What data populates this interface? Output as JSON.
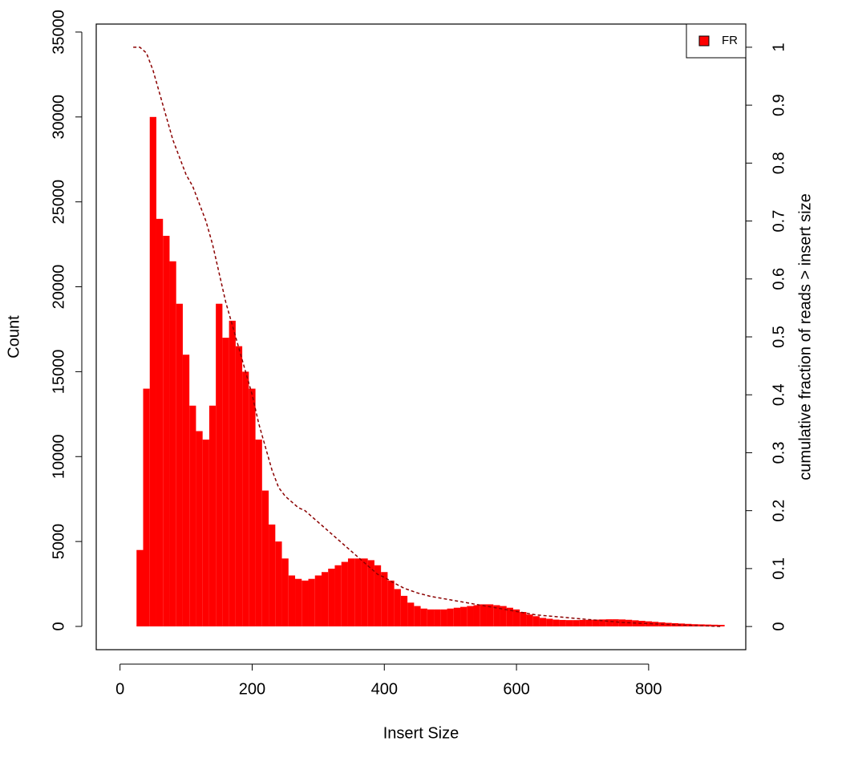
{
  "chart_data": {
    "type": "bar",
    "xlabel": "Insert Size",
    "ylabel": "Count",
    "y2label": "cumulative fraction of reads > insert size",
    "x": [
      20,
      30,
      40,
      50,
      60,
      70,
      80,
      90,
      100,
      110,
      120,
      130,
      140,
      150,
      160,
      170,
      180,
      190,
      200,
      210,
      220,
      230,
      240,
      250,
      260,
      270,
      280,
      290,
      300,
      310,
      320,
      330,
      340,
      350,
      360,
      370,
      380,
      390,
      400,
      410,
      420,
      430,
      440,
      450,
      460,
      470,
      480,
      490,
      500,
      510,
      520,
      530,
      540,
      550,
      560,
      570,
      580,
      590,
      600,
      610,
      620,
      630,
      640,
      650,
      660,
      670,
      680,
      690,
      700,
      710,
      720,
      730,
      740,
      750,
      760,
      770,
      780,
      790,
      800,
      810,
      820,
      830,
      840,
      850,
      860,
      870,
      880,
      890,
      900,
      910
    ],
    "series": [
      {
        "name": "FR",
        "color": "#ff0000",
        "values": [
          0,
          4500,
          14000,
          30000,
          24000,
          23000,
          21500,
          19000,
          16000,
          13000,
          11500,
          11000,
          13000,
          19000,
          17000,
          18000,
          16500,
          15000,
          14000,
          11000,
          8000,
          6000,
          5000,
          4000,
          3000,
          2800,
          2700,
          2800,
          3000,
          3200,
          3400,
          3600,
          3800,
          4000,
          4000,
          4000,
          3900,
          3600,
          3200,
          2700,
          2200,
          1800,
          1400,
          1200,
          1050,
          1000,
          1000,
          1000,
          1050,
          1100,
          1150,
          1200,
          1250,
          1300,
          1300,
          1250,
          1200,
          1100,
          1000,
          850,
          700,
          600,
          500,
          450,
          400,
          380,
          370,
          370,
          380,
          390,
          400,
          410,
          420,
          420,
          410,
          390,
          360,
          330,
          300,
          270,
          240,
          210,
          190,
          170,
          150,
          130,
          120,
          110,
          100,
          90
        ]
      },
      {
        "type": "line",
        "color": "#8b0000",
        "axis": "y2",
        "dashed": true,
        "values": [
          1,
          1,
          0.99,
          0.96,
          0.92,
          0.88,
          0.84,
          0.81,
          0.78,
          0.76,
          0.73,
          0.7,
          0.66,
          0.61,
          0.56,
          0.52,
          0.48,
          0.44,
          0.4,
          0.35,
          0.31,
          0.27,
          0.24,
          0.225,
          0.215,
          0.205,
          0.2,
          0.19,
          0.18,
          0.17,
          0.16,
          0.15,
          0.14,
          0.13,
          0.12,
          0.11,
          0.1,
          0.09,
          0.085,
          0.078,
          0.072,
          0.066,
          0.062,
          0.058,
          0.055,
          0.052,
          0.05,
          0.048,
          0.046,
          0.044,
          0.042,
          0.04,
          0.038,
          0.036,
          0.034,
          0.032,
          0.03,
          0.028,
          0.026,
          0.024,
          0.022,
          0.02,
          0.019,
          0.018,
          0.017,
          0.016,
          0.015,
          0.014,
          0.013,
          0.012,
          0.011,
          0.01,
          0.009,
          0.008,
          0.007,
          0.0065,
          0.006,
          0.0055,
          0.005,
          0.0045,
          0.004,
          0.0035,
          0.003,
          0.0025,
          0.002,
          0.0015,
          0.0012,
          0.001,
          0.0005,
          0
        ]
      }
    ],
    "xlim": [
      -36,
      947
    ],
    "ylim": [
      -1370,
      35470
    ],
    "y2lim": [
      -0.04,
      1.04
    ],
    "xticks": [
      0,
      200,
      400,
      600,
      800
    ],
    "yticks": [
      0,
      5000,
      10000,
      15000,
      20000,
      25000,
      30000,
      35000
    ],
    "y2ticks": [
      0,
      0.1,
      0.2,
      0.3,
      0.4,
      0.5,
      0.6,
      0.7,
      0.8,
      0.9,
      1
    ],
    "legend": "top-right",
    "grid": false
  }
}
